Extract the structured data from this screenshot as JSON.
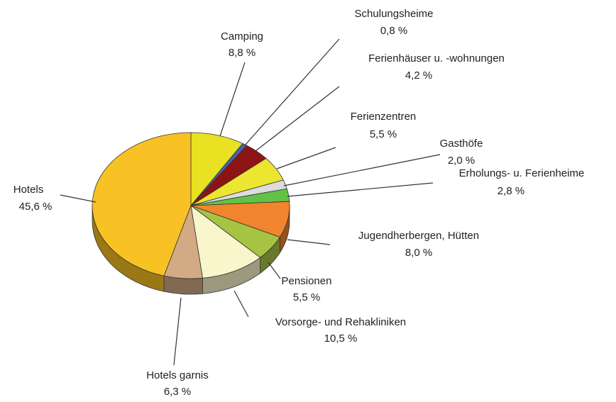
{
  "chart_data": {
    "type": "pie",
    "categories": [
      "Camping",
      "Schulungsheime",
      "Ferienhäuser u. -wohnungen",
      "Ferienzentren",
      "Gasthöfe",
      "Erholungs- u. Ferienheime",
      "Jugendherbergen, Hütten",
      "Pensionen",
      "Vorsorge- und Rehakliniken",
      "Hotels garnis",
      "Hotels"
    ],
    "values": [
      8.8,
      0.8,
      4.2,
      5.5,
      2.0,
      2.8,
      8.0,
      5.5,
      10.5,
      6.3,
      45.6
    ],
    "value_labels": [
      "8,8 %",
      "0,8 %",
      "4,2 %",
      "5,5 %",
      "2,0 %",
      "2,8 %",
      "8,0 %",
      "5,5 %",
      "10,5 %",
      "6,3 %",
      "45,6 %"
    ],
    "colors": [
      "#e8e222",
      "#4a62a8",
      "#8e1414",
      "#ece630",
      "#dcdcdc",
      "#62c246",
      "#f2842e",
      "#a6c442",
      "#faf6cc",
      "#d2aa84",
      "#f8c224"
    ]
  }
}
